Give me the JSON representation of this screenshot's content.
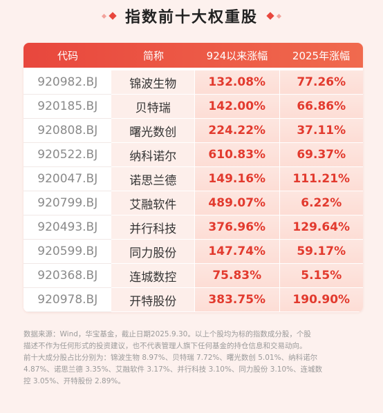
{
  "title": "指数前十大权重股",
  "table": {
    "headers": [
      "代码",
      "简称",
      "924以来涨幅",
      "2025年涨幅"
    ],
    "rows": [
      {
        "code": "920982.BJ",
        "name": "锦波生物",
        "since924": "132.08%",
        "ytd2025": "77.26%"
      },
      {
        "code": "920185.BJ",
        "name": "贝特瑞",
        "since924": "142.00%",
        "ytd2025": "66.86%"
      },
      {
        "code": "920808.BJ",
        "name": "曙光数创",
        "since924": "224.22%",
        "ytd2025": "37.11%"
      },
      {
        "code": "920522.BJ",
        "name": "纳科诺尔",
        "since924": "610.83%",
        "ytd2025": "69.37%"
      },
      {
        "code": "920047.BJ",
        "name": "诺思兰德",
        "since924": "149.16%",
        "ytd2025": "111.21%"
      },
      {
        "code": "920799.BJ",
        "name": "艾融软件",
        "since924": "489.07%",
        "ytd2025": "6.22%"
      },
      {
        "code": "920493.BJ",
        "name": "并行科技",
        "since924": "376.96%",
        "ytd2025": "129.64%"
      },
      {
        "code": "920599.BJ",
        "name": "同力股份",
        "since924": "147.74%",
        "ytd2025": "59.17%"
      },
      {
        "code": "920368.BJ",
        "name": "连城数控",
        "since924": "75.83%",
        "ytd2025": "5.15%"
      },
      {
        "code": "920978.BJ",
        "name": "开特股份",
        "since924": "383.75%",
        "ytd2025": "190.90%"
      }
    ]
  },
  "footnote": {
    "line1": "数据来源：Wind，华宝基金，截止日期2025.9.30。以上个股均为标的指数成分股，个股",
    "line2": "描述不作为任何形式的投资建议，也不代表管理人旗下任何基金的持仓信息和交易动向。",
    "line3": "前十大成分股占比分别为：锦波生物 8.97%、贝特瑞 7.72%、曙光数创 5.01%、纳科诺尔",
    "line4": "4.87%、诺思兰德 3.35%、艾融软件 3.17%、并行科技 3.10%、同力股份 3.10%、连城数",
    "line5": "控 3.05%、开特股份 2.89%。"
  },
  "colors": {
    "accent": "#e8473d",
    "highlight_text": "#e23a2e",
    "background": "#fdf1ee"
  }
}
